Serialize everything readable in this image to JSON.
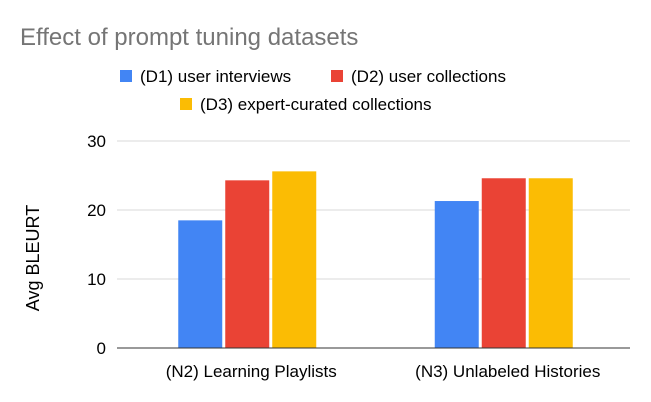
{
  "chart_data": {
    "type": "bar",
    "title": "Effect of prompt tuning datasets",
    "xlabel": "",
    "ylabel": "Avg BLEURT",
    "categories": [
      "(N2) Learning Playlists",
      "(N3) Unlabeled Histories"
    ],
    "series": [
      {
        "name": "(D1) user interviews",
        "values": [
          18.5,
          21.3
        ],
        "color": "#4285f4"
      },
      {
        "name": "(D2) user collections",
        "values": [
          24.3,
          24.6
        ],
        "color": "#ea4335"
      },
      {
        "name": "(D3) expert-curated collections",
        "values": [
          25.6,
          24.6
        ],
        "color": "#fbbc04"
      }
    ],
    "ylim": [
      0,
      30
    ],
    "yticks": [
      "0",
      "10",
      "20",
      "30"
    ],
    "grid": true,
    "legend_position": "top",
    "colors": {
      "title": "#757575",
      "text": "#000000",
      "grid": "#d9d9d9",
      "axis": "#333333"
    }
  }
}
